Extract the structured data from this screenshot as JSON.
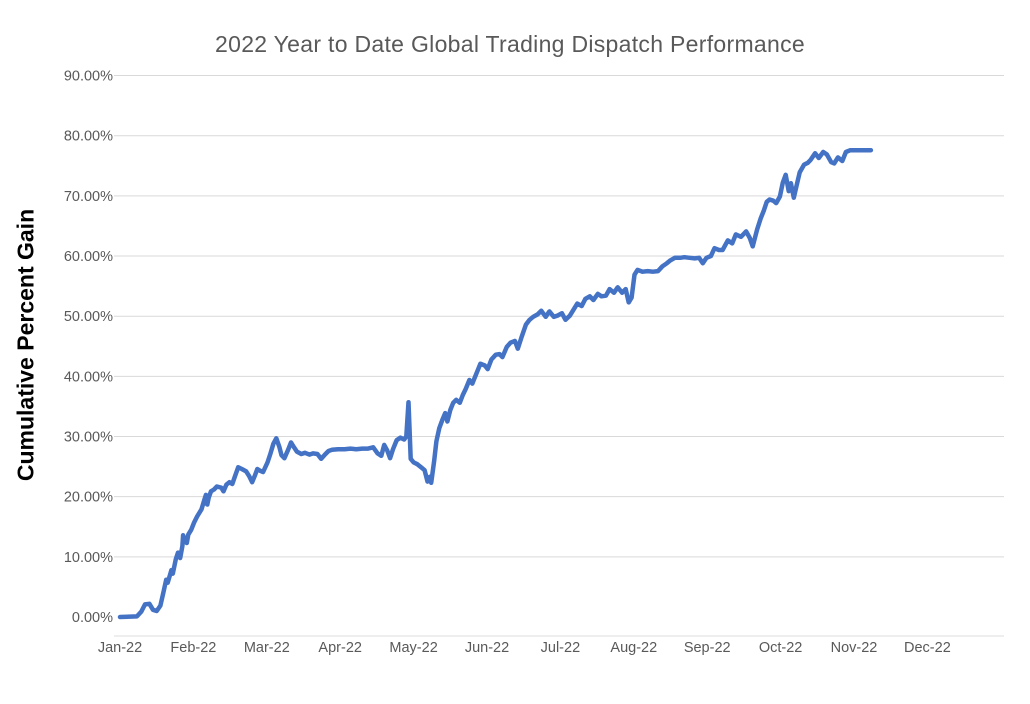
{
  "chart": {
    "title": "2022 Year to Date Global Trading Dispatch Performance",
    "y_axis_title": "Cumulative Percent Gain"
  },
  "colors": {
    "line": "#4472C4",
    "title_text": "#595959",
    "tick_text": "#595959",
    "axis_title_text": "#000000",
    "gridline": "#D9D9D9",
    "axis_line": "#DCDCDC",
    "background": "#FFFFFF"
  },
  "chart_data": {
    "type": "line",
    "title": "2022 Year to Date Global Trading Dispatch Performance",
    "xlabel": "",
    "ylabel": "Cumulative Percent Gain",
    "legend": "none",
    "grid": "horizontal",
    "ylim": [
      0,
      90
    ],
    "y_tick_values": [
      0,
      10,
      20,
      30,
      40,
      50,
      60,
      70,
      80,
      90
    ],
    "y_tick_labels": [
      "0.00%",
      "10.00%",
      "20.00%",
      "30.00%",
      "40.00%",
      "50.00%",
      "60.00%",
      "70.00%",
      "80.00%",
      "90.00%"
    ],
    "x_tick_values": [
      0,
      1,
      2,
      3,
      4,
      5,
      6,
      7,
      8,
      9,
      10,
      11
    ],
    "x_tick_labels": [
      "Jan-22",
      "Feb-22",
      "Mar-22",
      "Apr-22",
      "May-22",
      "Jun-22",
      "Jul-22",
      "Aug-22",
      "Sep-22",
      "Oct-22",
      "Nov-22",
      "Dec-22"
    ],
    "x_unit": "month index (0 = Jan-22 tick, fractional = day within month)",
    "y_unit": "cumulative percent gain",
    "series": [
      {
        "name": "Cumulative Percent Gain",
        "color": "#4472C4",
        "points": [
          [
            0.0,
            0.0
          ],
          [
            0.23,
            0.1
          ],
          [
            0.29,
            0.9
          ],
          [
            0.34,
            2.1
          ],
          [
            0.4,
            2.2
          ],
          [
            0.45,
            1.2
          ],
          [
            0.5,
            1.0
          ],
          [
            0.55,
            1.9
          ],
          [
            0.59,
            4.0
          ],
          [
            0.63,
            6.2
          ],
          [
            0.65,
            5.7
          ],
          [
            0.7,
            7.8
          ],
          [
            0.72,
            7.2
          ],
          [
            0.76,
            9.6
          ],
          [
            0.79,
            10.7
          ],
          [
            0.82,
            9.8
          ],
          [
            0.85,
            11.8
          ],
          [
            0.86,
            13.6
          ],
          [
            0.89,
            12.7
          ],
          [
            0.91,
            12.3
          ],
          [
            0.93,
            13.7
          ],
          [
            0.97,
            14.5
          ],
          [
            1.01,
            15.7
          ],
          [
            1.05,
            16.7
          ],
          [
            1.11,
            17.9
          ],
          [
            1.15,
            19.5
          ],
          [
            1.17,
            20.3
          ],
          [
            1.19,
            18.7
          ],
          [
            1.21,
            19.9
          ],
          [
            1.24,
            20.9
          ],
          [
            1.28,
            21.2
          ],
          [
            1.32,
            21.7
          ],
          [
            1.38,
            21.5
          ],
          [
            1.41,
            20.9
          ],
          [
            1.45,
            22.0
          ],
          [
            1.49,
            22.4
          ],
          [
            1.53,
            22.1
          ],
          [
            1.57,
            23.5
          ],
          [
            1.61,
            24.9
          ],
          [
            1.66,
            24.6
          ],
          [
            1.72,
            24.2
          ],
          [
            1.76,
            23.4
          ],
          [
            1.8,
            22.4
          ],
          [
            1.84,
            23.6
          ],
          [
            1.87,
            24.6
          ],
          [
            1.91,
            24.3
          ],
          [
            1.95,
            24.1
          ],
          [
            2.01,
            25.7
          ],
          [
            2.05,
            27.2
          ],
          [
            2.09,
            28.8
          ],
          [
            2.13,
            29.7
          ],
          [
            2.17,
            28.3
          ],
          [
            2.2,
            26.9
          ],
          [
            2.24,
            26.4
          ],
          [
            2.29,
            27.8
          ],
          [
            2.33,
            29.0
          ],
          [
            2.37,
            28.2
          ],
          [
            2.41,
            27.5
          ],
          [
            2.47,
            27.1
          ],
          [
            2.52,
            27.3
          ],
          [
            2.58,
            27.0
          ],
          [
            2.63,
            27.2
          ],
          [
            2.69,
            27.1
          ],
          [
            2.74,
            26.3
          ],
          [
            2.8,
            27.1
          ],
          [
            2.84,
            27.6
          ],
          [
            2.89,
            27.8
          ],
          [
            2.97,
            27.9
          ],
          [
            3.06,
            27.9
          ],
          [
            3.14,
            28.0
          ],
          [
            3.22,
            27.9
          ],
          [
            3.3,
            28.0
          ],
          [
            3.38,
            28.0
          ],
          [
            3.45,
            28.2
          ],
          [
            3.51,
            27.2
          ],
          [
            3.56,
            26.8
          ],
          [
            3.6,
            28.6
          ],
          [
            3.64,
            27.7
          ],
          [
            3.68,
            26.4
          ],
          [
            3.72,
            27.9
          ],
          [
            3.77,
            29.4
          ],
          [
            3.82,
            29.8
          ],
          [
            3.87,
            29.5
          ],
          [
            3.9,
            30.0
          ],
          [
            3.93,
            35.7
          ],
          [
            3.96,
            26.3
          ],
          [
            4.0,
            25.7
          ],
          [
            4.05,
            25.4
          ],
          [
            4.11,
            24.8
          ],
          [
            4.15,
            24.4
          ],
          [
            4.19,
            22.5
          ],
          [
            4.22,
            23.3
          ],
          [
            4.24,
            22.3
          ],
          [
            4.28,
            26.0
          ],
          [
            4.31,
            29.2
          ],
          [
            4.35,
            31.4
          ],
          [
            4.39,
            32.7
          ],
          [
            4.43,
            33.9
          ],
          [
            4.46,
            32.5
          ],
          [
            4.5,
            34.4
          ],
          [
            4.54,
            35.6
          ],
          [
            4.58,
            36.1
          ],
          [
            4.63,
            35.6
          ],
          [
            4.67,
            36.9
          ],
          [
            4.71,
            37.9
          ],
          [
            4.76,
            39.4
          ],
          [
            4.8,
            38.8
          ],
          [
            4.86,
            40.6
          ],
          [
            4.91,
            42.1
          ],
          [
            4.97,
            41.8
          ],
          [
            5.01,
            41.2
          ],
          [
            5.06,
            42.8
          ],
          [
            5.12,
            43.6
          ],
          [
            5.17,
            43.7
          ],
          [
            5.21,
            43.2
          ],
          [
            5.27,
            44.9
          ],
          [
            5.32,
            45.6
          ],
          [
            5.38,
            45.9
          ],
          [
            5.42,
            44.6
          ],
          [
            5.47,
            46.5
          ],
          [
            5.53,
            48.6
          ],
          [
            5.58,
            49.4
          ],
          [
            5.63,
            49.9
          ],
          [
            5.69,
            50.3
          ],
          [
            5.74,
            50.9
          ],
          [
            5.8,
            49.9
          ],
          [
            5.85,
            50.8
          ],
          [
            5.91,
            49.9
          ],
          [
            5.96,
            50.1
          ],
          [
            6.02,
            50.5
          ],
          [
            6.07,
            49.4
          ],
          [
            6.13,
            50.1
          ],
          [
            6.18,
            51.1
          ],
          [
            6.23,
            52.1
          ],
          [
            6.29,
            51.7
          ],
          [
            6.34,
            52.9
          ],
          [
            6.4,
            53.3
          ],
          [
            6.45,
            52.7
          ],
          [
            6.51,
            53.7
          ],
          [
            6.56,
            53.3
          ],
          [
            6.62,
            53.4
          ],
          [
            6.67,
            54.5
          ],
          [
            6.73,
            53.9
          ],
          [
            6.78,
            54.8
          ],
          [
            6.84,
            53.9
          ],
          [
            6.89,
            54.5
          ],
          [
            6.93,
            52.3
          ],
          [
            6.97,
            53.1
          ],
          [
            7.01,
            56.9
          ],
          [
            7.05,
            57.7
          ],
          [
            7.12,
            57.4
          ],
          [
            7.19,
            57.5
          ],
          [
            7.26,
            57.4
          ],
          [
            7.33,
            57.5
          ],
          [
            7.39,
            58.3
          ],
          [
            7.45,
            58.8
          ],
          [
            7.5,
            59.3
          ],
          [
            7.56,
            59.7
          ],
          [
            7.63,
            59.7
          ],
          [
            7.69,
            59.8
          ],
          [
            7.76,
            59.7
          ],
          [
            7.83,
            59.6
          ],
          [
            7.89,
            59.7
          ],
          [
            7.94,
            58.8
          ],
          [
            7.99,
            59.7
          ],
          [
            8.05,
            60.0
          ],
          [
            8.1,
            61.3
          ],
          [
            8.16,
            61.0
          ],
          [
            8.21,
            61.0
          ],
          [
            8.28,
            62.6
          ],
          [
            8.34,
            62.1
          ],
          [
            8.39,
            63.6
          ],
          [
            8.46,
            63.2
          ],
          [
            8.53,
            64.1
          ],
          [
            8.58,
            63.0
          ],
          [
            8.62,
            61.6
          ],
          [
            8.68,
            64.4
          ],
          [
            8.73,
            66.3
          ],
          [
            8.77,
            67.5
          ],
          [
            8.81,
            69.0
          ],
          [
            8.85,
            69.4
          ],
          [
            8.9,
            69.2
          ],
          [
            8.94,
            68.8
          ],
          [
            8.99,
            69.9
          ],
          [
            9.03,
            72.2
          ],
          [
            9.07,
            73.5
          ],
          [
            9.11,
            70.8
          ],
          [
            9.14,
            72.1
          ],
          [
            9.18,
            69.7
          ],
          [
            9.22,
            71.8
          ],
          [
            9.26,
            73.9
          ],
          [
            9.32,
            75.2
          ],
          [
            9.37,
            75.5
          ],
          [
            9.41,
            76.0
          ],
          [
            9.47,
            77.1
          ],
          [
            9.52,
            76.3
          ],
          [
            9.58,
            77.3
          ],
          [
            9.63,
            76.9
          ],
          [
            9.69,
            75.6
          ],
          [
            9.73,
            75.4
          ],
          [
            9.78,
            76.4
          ],
          [
            9.84,
            75.8
          ],
          [
            9.89,
            77.3
          ],
          [
            9.95,
            77.6
          ],
          [
            10.23,
            77.6
          ]
        ]
      }
    ]
  }
}
